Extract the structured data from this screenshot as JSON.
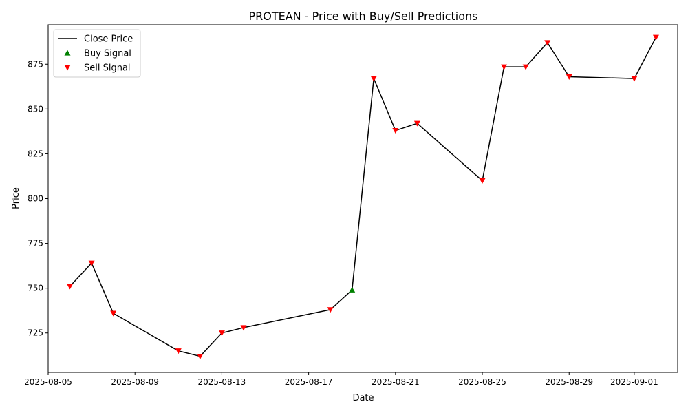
{
  "chart_data": {
    "type": "line",
    "title": "PROTEAN - Price with Buy/Sell Predictions",
    "xlabel": "Date",
    "ylabel": "Price",
    "x_ticks": [
      "2025-08-05",
      "2025-08-09",
      "2025-08-13",
      "2025-08-17",
      "2025-08-21",
      "2025-08-25",
      "2025-08-29",
      "2025-09-01"
    ],
    "y_ticks": [
      725,
      750,
      775,
      800,
      825,
      850,
      875
    ],
    "xlim": [
      "2025-08-05",
      "2025-09-03"
    ],
    "ylim": [
      703,
      897
    ],
    "grid": false,
    "legend_position": "top-left",
    "series": [
      {
        "name": "Close Price",
        "kind": "line",
        "color": "#000000",
        "points": [
          {
            "x": "2025-08-06",
            "y": 751
          },
          {
            "x": "2025-08-07",
            "y": 764
          },
          {
            "x": "2025-08-08",
            "y": 736
          },
          {
            "x": "2025-08-11",
            "y": 715
          },
          {
            "x": "2025-08-12",
            "y": 712
          },
          {
            "x": "2025-08-13",
            "y": 725
          },
          {
            "x": "2025-08-14",
            "y": 728
          },
          {
            "x": "2025-08-18",
            "y": 738
          },
          {
            "x": "2025-08-19",
            "y": 749
          },
          {
            "x": "2025-08-20",
            "y": 867
          },
          {
            "x": "2025-08-21",
            "y": 838
          },
          {
            "x": "2025-08-22",
            "y": 842
          },
          {
            "x": "2025-08-25",
            "y": 810
          },
          {
            "x": "2025-08-26",
            "y": 873.5
          },
          {
            "x": "2025-08-27",
            "y": 873.5
          },
          {
            "x": "2025-08-28",
            "y": 887
          },
          {
            "x": "2025-08-29",
            "y": 868
          },
          {
            "x": "2025-09-01",
            "y": 867
          },
          {
            "x": "2025-09-02",
            "y": 890
          }
        ]
      },
      {
        "name": "Buy Signal",
        "kind": "marker-up",
        "color": "#008000",
        "points": [
          {
            "x": "2025-08-19",
            "y": 749
          }
        ]
      },
      {
        "name": "Sell Signal",
        "kind": "marker-down",
        "color": "#ff0000",
        "points": [
          {
            "x": "2025-08-06",
            "y": 751
          },
          {
            "x": "2025-08-07",
            "y": 764
          },
          {
            "x": "2025-08-08",
            "y": 736
          },
          {
            "x": "2025-08-11",
            "y": 715
          },
          {
            "x": "2025-08-12",
            "y": 712
          },
          {
            "x": "2025-08-13",
            "y": 725
          },
          {
            "x": "2025-08-14",
            "y": 728
          },
          {
            "x": "2025-08-18",
            "y": 738
          },
          {
            "x": "2025-08-20",
            "y": 867
          },
          {
            "x": "2025-08-21",
            "y": 838
          },
          {
            "x": "2025-08-22",
            "y": 842
          },
          {
            "x": "2025-08-25",
            "y": 810
          },
          {
            "x": "2025-08-26",
            "y": 873.5
          },
          {
            "x": "2025-08-27",
            "y": 873.5
          },
          {
            "x": "2025-08-28",
            "y": 887
          },
          {
            "x": "2025-08-29",
            "y": 868
          },
          {
            "x": "2025-09-01",
            "y": 867
          },
          {
            "x": "2025-09-02",
            "y": 890
          }
        ]
      }
    ]
  }
}
